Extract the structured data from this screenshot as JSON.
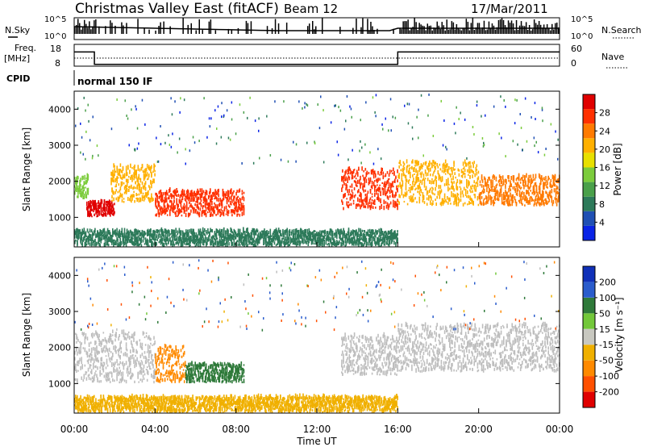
{
  "header": {
    "station": "Christmas Valley East (fitACF)",
    "beam": "Beam 12",
    "date": "17/Mar/2011"
  },
  "status_rows": {
    "nsky_label": "N.Sky",
    "nsky_ticks": [
      "10^5",
      "10^0"
    ],
    "nsearch_label": "N.Search",
    "nsearch_ticks": [
      "10^5",
      "10^0"
    ],
    "freq_label": "Freq.",
    "freq_unit": "[MHz]",
    "freq_ticks": [
      "18",
      "8"
    ],
    "nave_label": "Nave",
    "nave_ticks": [
      "60",
      "0"
    ],
    "cpid_label": "CPID",
    "cpid_value": "normal 150 IF"
  },
  "colors": {
    "power_scale": [
      "#0a24e6",
      "#2050b4",
      "#2d7a5a",
      "#4aa04a",
      "#7ccc3c",
      "#e8e000",
      "#ffb000",
      "#ff7a00",
      "#ff3000",
      "#e00000"
    ],
    "velocity_scale": [
      "#1030b8",
      "#2a5ccc",
      "#2f7a3a",
      "#73c83a",
      "#c8c8c0",
      "#f0b000",
      "#ff8a00",
      "#ff5000",
      "#e00000"
    ],
    "ground_scatter": "#bebebe",
    "axis": "#000000"
  },
  "chart_data": [
    {
      "type": "heatmap",
      "panel": "power",
      "ylabel": "Slant Range [km]",
      "ylim": [
        180,
        4500
      ],
      "yticks": [
        "1000",
        "2000",
        "3000",
        "4000"
      ],
      "xlim": [
        "00:00",
        "24:00"
      ],
      "colorbar": {
        "label": "Power [dB]",
        "range": [
          0,
          30
        ],
        "ticks": [
          "4",
          "8",
          "12",
          "16",
          "20",
          "24",
          "28"
        ]
      },
      "bands": [
        {
          "t0": 0.0,
          "t1": 0.7,
          "r0": 1500,
          "r1": 2100,
          "value": 14
        },
        {
          "t0": 0.6,
          "t1": 2.0,
          "r0": 1000,
          "r1": 1400,
          "value": 28
        },
        {
          "t0": 1.8,
          "t1": 4.0,
          "r0": 1400,
          "r1": 2400,
          "value": 18
        },
        {
          "t0": 4.0,
          "t1": 8.4,
          "r0": 1000,
          "r1": 1700,
          "value": 24
        },
        {
          "t0": 0.0,
          "t1": 16.0,
          "r0": 180,
          "r1": 600,
          "value": 6
        },
        {
          "t0": 13.2,
          "t1": 16.0,
          "r0": 1200,
          "r1": 2300,
          "value": 26
        },
        {
          "t0": 16.0,
          "t1": 20.0,
          "r0": 1300,
          "r1": 2500,
          "value": 18
        },
        {
          "t0": 20.0,
          "t1": 24.0,
          "r0": 1300,
          "r1": 2100,
          "value": 22
        }
      ]
    },
    {
      "type": "heatmap",
      "panel": "velocity",
      "ylabel": "Slant Range [km]",
      "xlabel": "Time UT",
      "ylim": [
        180,
        4500
      ],
      "yticks": [
        "1000",
        "2000",
        "3000",
        "4000"
      ],
      "xticks": [
        "00:00",
        "04:00",
        "08:00",
        "12:00",
        "16:00",
        "20:00",
        "00:00"
      ],
      "colorbar": {
        "label": "Velocity [m s⁻¹]",
        "ticks": [
          "200",
          "100",
          "50",
          "15",
          "-15",
          "-50",
          "-100",
          "-200"
        ]
      },
      "bands": [
        {
          "t0": 0.0,
          "t1": 4.0,
          "r0": 1000,
          "r1": 2400,
          "value": 0
        },
        {
          "t0": 4.0,
          "t1": 5.5,
          "r0": 1000,
          "r1": 2000,
          "value": -40
        },
        {
          "t0": 5.5,
          "t1": 8.4,
          "r0": 1000,
          "r1": 1500,
          "value": 45
        },
        {
          "t0": 0.0,
          "t1": 16.0,
          "r0": 180,
          "r1": 600,
          "value": -30
        },
        {
          "t0": 13.2,
          "t1": 16.0,
          "r0": 1200,
          "r1": 2300,
          "value": 0
        },
        {
          "t0": 16.0,
          "t1": 24.0,
          "r0": 1300,
          "r1": 2600,
          "value": 0
        }
      ]
    },
    {
      "type": "line",
      "panel": "frequency",
      "series": [
        {
          "segments": [
            {
              "t0": 0.0,
              "t1": 1.0,
              "value": 16
            },
            {
              "t0": 1.0,
              "t1": 16.0,
              "value": 9
            },
            {
              "t0": 16.0,
              "t1": 24.0,
              "value": 16
            }
          ]
        }
      ]
    }
  ]
}
